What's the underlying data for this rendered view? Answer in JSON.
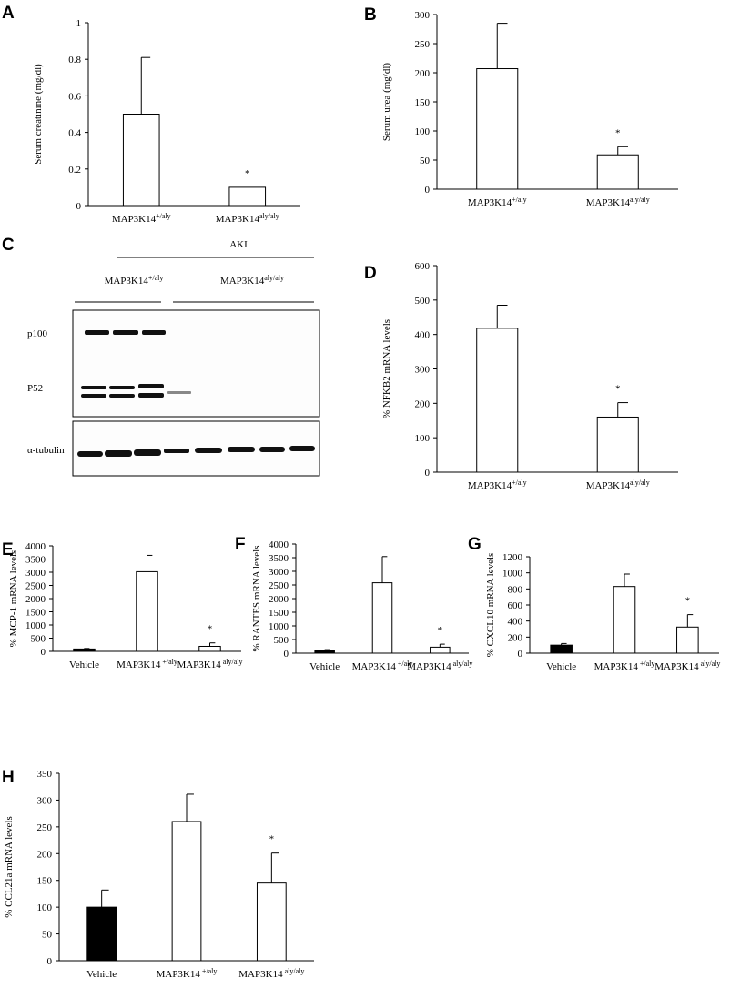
{
  "chart_data": [
    {
      "type": "bar",
      "panel": "A",
      "y_label": "Serum creatinine (mg/dl)",
      "categories": [
        "MAP3K14+/aly",
        "MAP3K14aly/aly"
      ],
      "values": [
        0.5,
        0.1
      ],
      "errors": [
        0.31,
        0
      ],
      "colors": [
        "#ffffff",
        "#ffffff"
      ],
      "ylim": [
        0,
        1
      ],
      "yticks": [
        0,
        0.2,
        0.4,
        0.6,
        0.8,
        1
      ],
      "annotation": {
        "text": "*",
        "index": 1
      }
    },
    {
      "type": "bar",
      "panel": "B",
      "y_label": "Serum urea (mg/dl)",
      "categories": [
        "MAP3K14+/aly",
        "MAP3K14aly/aly"
      ],
      "values": [
        207,
        59
      ],
      "errors": [
        78,
        14
      ],
      "colors": [
        "#ffffff",
        "#ffffff"
      ],
      "ylim": [
        0,
        300
      ],
      "yticks": [
        0,
        50,
        100,
        150,
        200,
        250,
        300
      ],
      "annotation": {
        "text": "*",
        "index": 1
      }
    },
    {
      "type": "bar",
      "panel": "D",
      "y_label": "% NFKB2 mRNA levels",
      "categories": [
        "MAP3K14+/aly",
        "MAP3K14aly/aly"
      ],
      "values": [
        418,
        160
      ],
      "errors": [
        67,
        42
      ],
      "colors": [
        "#ffffff",
        "#ffffff"
      ],
      "ylim": [
        0,
        600
      ],
      "yticks": [
        0,
        100,
        200,
        300,
        400,
        500,
        600
      ],
      "annotation": {
        "text": "*",
        "index": 1
      }
    },
    {
      "type": "bar",
      "panel": "E",
      "y_label": "% MCP-1 mRNA levels",
      "categories": [
        "Vehicle",
        "MAP3K14 +/aly",
        "MAP3K14 aly/aly"
      ],
      "values": [
        90,
        3020,
        190
      ],
      "errors": [
        20,
        620,
        130
      ],
      "colors": [
        "#000000",
        "#ffffff",
        "#ffffff"
      ],
      "ylim": [
        0,
        4000
      ],
      "yticks": [
        0,
        500,
        1000,
        1500,
        2000,
        2500,
        3000,
        3500,
        4000
      ],
      "annotation": {
        "text": "*",
        "index": 2
      }
    },
    {
      "type": "bar",
      "panel": "F",
      "y_label": "% RANTES mRNA levels",
      "categories": [
        "Vehicle",
        "MAP3K14 +/aly",
        "MAP3K14 aly/aly"
      ],
      "values": [
        100,
        2580,
        220
      ],
      "errors": [
        30,
        960,
        110
      ],
      "colors": [
        "#000000",
        "#ffffff",
        "#ffffff"
      ],
      "ylim": [
        0,
        4000
      ],
      "yticks": [
        0,
        500,
        1000,
        1500,
        2000,
        2500,
        3000,
        3500,
        4000
      ],
      "annotation": {
        "text": "*",
        "index": 2
      }
    },
    {
      "type": "bar",
      "panel": "G",
      "y_label": "% CXCL10 mRNA levels",
      "categories": [
        "Vehicle",
        "MAP3K14 +/aly",
        "MAP3K14 aly/aly"
      ],
      "values": [
        100,
        830,
        325
      ],
      "errors": [
        20,
        155,
        155
      ],
      "colors": [
        "#000000",
        "#ffffff",
        "#ffffff"
      ],
      "ylim": [
        0,
        1200
      ],
      "yticks": [
        0,
        200,
        400,
        600,
        800,
        1000,
        1200
      ],
      "annotation": {
        "text": "*",
        "index": 2
      }
    },
    {
      "type": "bar",
      "panel": "H",
      "y_label": "% CCL21a mRNA levels",
      "categories": [
        "Vehicle",
        "MAP3K14 +/aly",
        "MAP3K14 aly/aly"
      ],
      "values": [
        100,
        260,
        145
      ],
      "errors": [
        32,
        51,
        56
      ],
      "colors": [
        "#000000",
        "#ffffff",
        "#ffffff"
      ],
      "ylim": [
        0,
        350
      ],
      "yticks": [
        0,
        50,
        100,
        150,
        200,
        250,
        300,
        350
      ],
      "annotation": {
        "text": "*",
        "index": 2
      }
    }
  ],
  "blot": {
    "panel": "C",
    "title": "AKI",
    "groups": [
      "MAP3K14+/aly",
      "MAP3K14aly/aly"
    ],
    "rows": [
      "p100",
      "P52",
      "α-tubulin"
    ]
  }
}
